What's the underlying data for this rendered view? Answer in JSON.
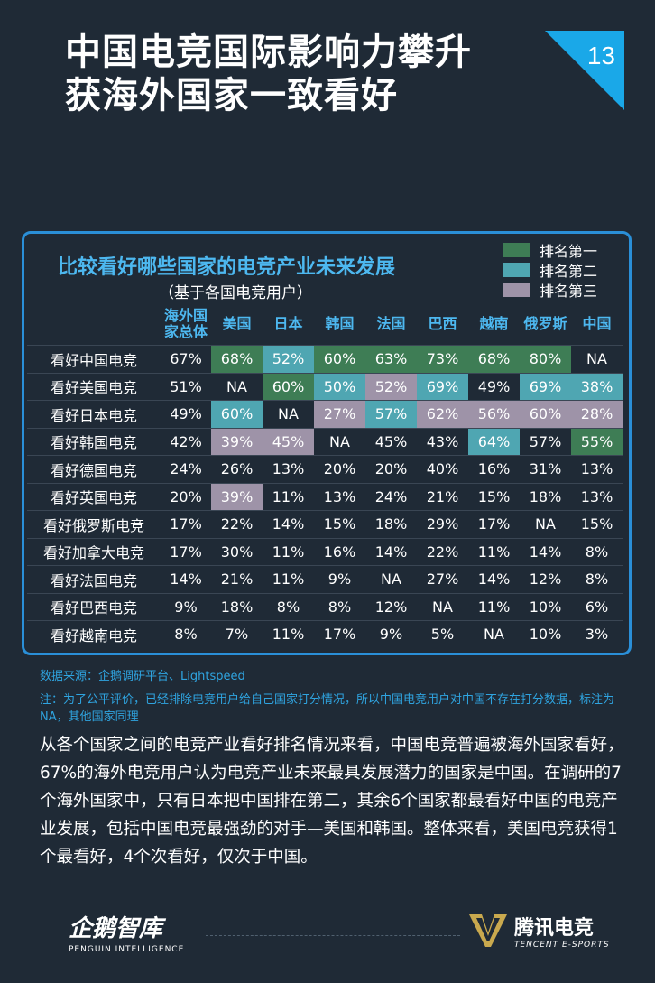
{
  "page": {
    "title_line1": "中国电竞国际影响力攀升",
    "title_line2": "获海外国家一致看好",
    "page_number": "13",
    "accent_color": "#1aa8e8"
  },
  "chart_data": {
    "type": "heatmap",
    "title": "比较看好哪些国家的电竞产业未来发展",
    "subtitle": "（基于各国电竞用户）",
    "legend": [
      {
        "label": "排名第一",
        "color": "#3e7d55",
        "rank": 1
      },
      {
        "label": "排名第二",
        "color": "#4fa6b2",
        "rank": 2
      },
      {
        "label": "排名第三",
        "color": "#9e93a8",
        "rank": 3
      }
    ],
    "columns": [
      "海外国家总体",
      "美国",
      "日本",
      "韩国",
      "法国",
      "巴西",
      "越南",
      "俄罗斯",
      "中国"
    ],
    "rows": [
      {
        "label": "看好中国电竞",
        "values": [
          "67%",
          "68%",
          "52%",
          "60%",
          "63%",
          "73%",
          "68%",
          "80%",
          "NA"
        ],
        "ranks": [
          0,
          1,
          2,
          1,
          1,
          1,
          1,
          1,
          0
        ]
      },
      {
        "label": "看好美国电竞",
        "values": [
          "51%",
          "NA",
          "60%",
          "50%",
          "52%",
          "69%",
          "49%",
          "69%",
          "38%"
        ],
        "ranks": [
          0,
          0,
          1,
          2,
          3,
          2,
          0,
          2,
          2
        ]
      },
      {
        "label": "看好日本电竞",
        "values": [
          "49%",
          "60%",
          "NA",
          "27%",
          "57%",
          "62%",
          "56%",
          "60%",
          "28%"
        ],
        "ranks": [
          0,
          2,
          0,
          3,
          2,
          3,
          3,
          3,
          3
        ]
      },
      {
        "label": "看好韩国电竞",
        "values": [
          "42%",
          "39%",
          "45%",
          "NA",
          "45%",
          "43%",
          "64%",
          "57%",
          "55%"
        ],
        "ranks": [
          0,
          3,
          3,
          0,
          0,
          0,
          2,
          0,
          1
        ]
      },
      {
        "label": "看好德国电竞",
        "values": [
          "24%",
          "26%",
          "13%",
          "20%",
          "20%",
          "40%",
          "16%",
          "31%",
          "13%"
        ],
        "ranks": [
          0,
          0,
          0,
          0,
          0,
          0,
          0,
          0,
          0
        ]
      },
      {
        "label": "看好英国电竞",
        "values": [
          "20%",
          "39%",
          "11%",
          "13%",
          "24%",
          "21%",
          "15%",
          "18%",
          "13%"
        ],
        "ranks": [
          0,
          3,
          0,
          0,
          0,
          0,
          0,
          0,
          0
        ]
      },
      {
        "label": "看好俄罗斯电竞",
        "values": [
          "17%",
          "22%",
          "14%",
          "15%",
          "18%",
          "29%",
          "17%",
          "NA",
          "15%"
        ],
        "ranks": [
          0,
          0,
          0,
          0,
          0,
          0,
          0,
          0,
          0
        ]
      },
      {
        "label": "看好加拿大电竞",
        "values": [
          "17%",
          "30%",
          "11%",
          "16%",
          "14%",
          "22%",
          "11%",
          "14%",
          "8%"
        ],
        "ranks": [
          0,
          0,
          0,
          0,
          0,
          0,
          0,
          0,
          0
        ]
      },
      {
        "label": "看好法国电竞",
        "values": [
          "14%",
          "21%",
          "11%",
          "9%",
          "NA",
          "27%",
          "14%",
          "12%",
          "8%"
        ],
        "ranks": [
          0,
          0,
          0,
          0,
          0,
          0,
          0,
          0,
          0
        ]
      },
      {
        "label": "看好巴西电竞",
        "values": [
          "9%",
          "18%",
          "8%",
          "8%",
          "12%",
          "NA",
          "11%",
          "10%",
          "6%"
        ],
        "ranks": [
          0,
          0,
          0,
          0,
          0,
          0,
          0,
          0,
          0
        ]
      },
      {
        "label": "看好越南电竞",
        "values": [
          "8%",
          "7%",
          "11%",
          "17%",
          "9%",
          "5%",
          "NA",
          "10%",
          "3%"
        ],
        "ranks": [
          0,
          0,
          0,
          0,
          0,
          0,
          0,
          0,
          0
        ]
      }
    ]
  },
  "notes": {
    "source": "数据来源：企鹅调研平台、Lightspeed",
    "note": "注：为了公平评价，已经排除电竞用户给自己国家打分情况，所以中国电竞用户对中国不存在打分数据，标注为NA，其他国家同理"
  },
  "body_text": "从各个国家之间的电竞产业看好排名情况来看，中国电竞普遍被海外国家看好，67%的海外电竞用户认为电竞产业未来最具发展潜力的国家是中国。在调研的7个海外国家中，只有日本把中国排在第二，其余6个国家都最看好中国的电竞产业发展，包括中国电竞最强劲的对手—美国和韩国。整体来看，美国电竞获得1个最看好，4个次看好，仅次于中国。",
  "footer": {
    "left_logo_cn": "企鹅智库",
    "left_logo_en": "PENGUIN INTELLIGENCE",
    "right_logo_cn": "腾讯电竞",
    "right_logo_en": "TENCENT E-SPORTS"
  }
}
